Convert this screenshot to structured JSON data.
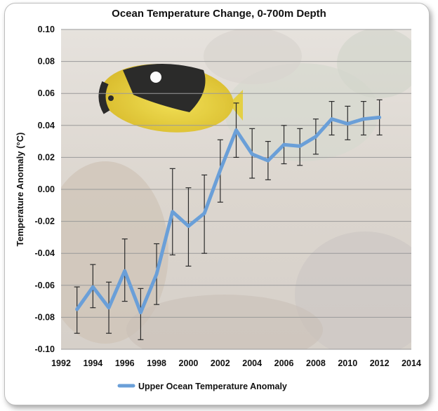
{
  "chart_data": {
    "type": "line",
    "title": "Ocean Temperature Change, 0-700m Depth",
    "xlabel": "",
    "ylabel": "Temperature Anomaly (°C)",
    "xlim": [
      1992,
      2014
    ],
    "ylim": [
      -0.1,
      0.1
    ],
    "x_ticks": [
      "1992",
      "1994",
      "1996",
      "1998",
      "2000",
      "2002",
      "2004",
      "2006",
      "2008",
      "2010",
      "2012",
      "2014"
    ],
    "y_ticks": [
      "0.10",
      "0.08",
      "0.06",
      "0.04",
      "0.02",
      "0.00",
      "-0.02",
      "-0.04",
      "-0.06",
      "-0.08",
      "-0.10"
    ],
    "grid": true,
    "legend": "bottom",
    "series": [
      {
        "name": "Upper Ocean Temperature Anomaly",
        "color": "#6a9fd8",
        "x": [
          1993,
          1994,
          1995,
          1996,
          1997,
          1998,
          1999,
          2000,
          2001,
          2002,
          2003,
          2004,
          2005,
          2006,
          2007,
          2008,
          2009,
          2010,
          2011,
          2012
        ],
        "y": [
          -0.075,
          -0.061,
          -0.074,
          -0.051,
          -0.077,
          -0.053,
          -0.014,
          -0.023,
          -0.015,
          0.012,
          0.037,
          0.022,
          0.018,
          0.028,
          0.027,
          0.033,
          0.044,
          0.041,
          0.044,
          0.045
        ],
        "err_low": [
          -0.09,
          -0.074,
          -0.09,
          -0.07,
          -0.094,
          -0.072,
          -0.041,
          -0.048,
          -0.04,
          -0.008,
          0.02,
          0.007,
          0.006,
          0.016,
          0.015,
          0.022,
          0.034,
          0.031,
          0.034,
          0.034
        ],
        "err_high": [
          -0.061,
          -0.047,
          -0.058,
          -0.031,
          -0.062,
          -0.034,
          0.013,
          0.001,
          0.009,
          0.031,
          0.054,
          0.038,
          0.03,
          0.04,
          0.038,
          0.044,
          0.055,
          0.052,
          0.055,
          0.056
        ]
      }
    ]
  }
}
